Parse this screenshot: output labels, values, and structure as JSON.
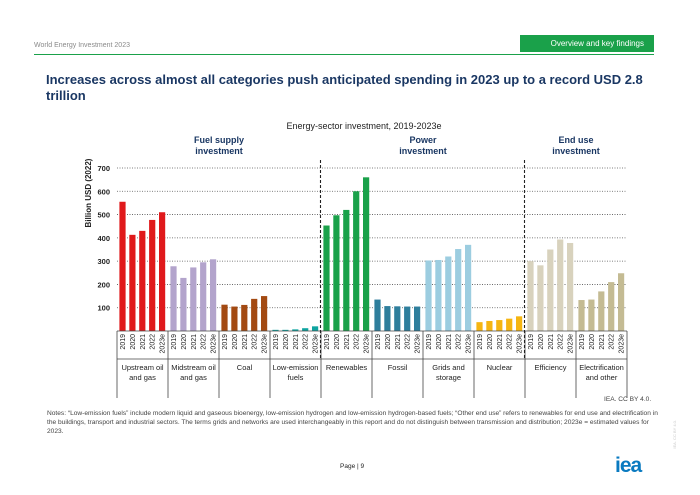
{
  "header": {
    "report_name": "World Energy Investment 2023",
    "section_tab": "Overview and key findings"
  },
  "page_title": "Increases across almost all categories push anticipated spending in 2023 up to a record USD 2.8 trillion",
  "chart_data": {
    "type": "bar",
    "title": "Energy-sector investment, 2019-2023e",
    "ylabel": "Billion USD (2022)",
    "ylim": [
      0,
      700
    ],
    "yticks": [
      100,
      200,
      300,
      400,
      500,
      600,
      700
    ],
    "grid": "horizontal dotted",
    "years": [
      "2019",
      "2020",
      "2021",
      "2022",
      "2023e"
    ],
    "groups": [
      {
        "name": "Fuel supply investment",
        "categories": [
          "Upstream oil and gas",
          "Midstream oil and gas",
          "Coal",
          "Low-emission fuels"
        ]
      },
      {
        "name": "Power investment",
        "categories": [
          "Renewables",
          "Fossil",
          "Grids and storage",
          "Nuclear"
        ]
      },
      {
        "name": "End use investment",
        "categories": [
          "Efficiency",
          "Electrification and other"
        ]
      }
    ],
    "series": [
      {
        "name": "Upstream oil and gas",
        "color": "#e0191b",
        "values": [
          555,
          413,
          430,
          477,
          510
        ]
      },
      {
        "name": "Midstream oil and gas",
        "color": "#b3a4cc",
        "values": [
          278,
          228,
          273,
          295,
          308
        ]
      },
      {
        "name": "Coal",
        "color": "#a34a12",
        "values": [
          113,
          105,
          112,
          138,
          150
        ]
      },
      {
        "name": "Low-emission fuels",
        "color": "#0ea4a0",
        "values": [
          5,
          5,
          7,
          12,
          20
        ]
      },
      {
        "name": "Renewables",
        "color": "#1aa14a",
        "values": [
          453,
          497,
          520,
          600,
          660
        ]
      },
      {
        "name": "Fossil",
        "color": "#2e7e9c",
        "values": [
          135,
          107,
          106,
          105,
          105
        ]
      },
      {
        "name": "Grids and storage",
        "color": "#9ccde0",
        "values": [
          303,
          305,
          320,
          352,
          370
        ]
      },
      {
        "name": "Nuclear",
        "color": "#f5b512",
        "values": [
          38,
          43,
          47,
          53,
          63
        ]
      },
      {
        "name": "Efficiency",
        "color": "#d8d2bd",
        "values": [
          300,
          282,
          350,
          393,
          378
        ]
      },
      {
        "name": "Electrification and other",
        "color": "#c4bb93",
        "values": [
          133,
          135,
          170,
          210,
          248
        ]
      }
    ]
  },
  "notes": "Notes: “Low-emission fuels” include modern liquid and gaseous bioenergy, low-emission hydrogen and low-emission hydrogen-based fuels; “Other end use” refers to renewables for end use and electrification in the buildings, transport and industrial sectors. The terms grids and networks are used interchangeably in this report and do not distinguish between transmission and distribution; 2023e = estimated values for 2023.",
  "credit": "IEA. CC BY 4.0.",
  "footer": {
    "page_label": "Page | 9",
    "logo": "iea",
    "side_mark": "IEA. CC BY 4.0."
  }
}
